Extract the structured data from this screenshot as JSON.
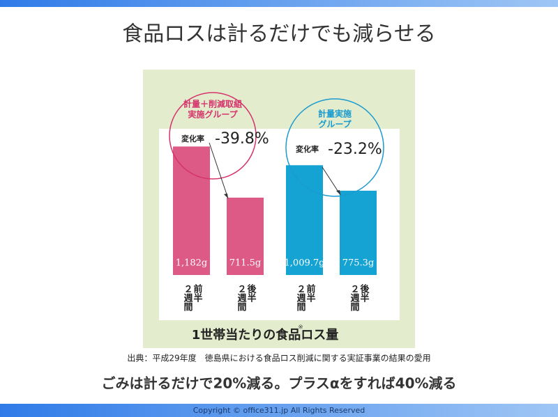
{
  "title": "食品ロスは計るだけでも減らせる",
  "chart_data": {
    "type": "bar",
    "categories": [
      "２週間前半",
      "２週間後半",
      "２週間前半",
      "２週間後半"
    ],
    "values": [
      1182,
      711.5,
      1009.7,
      775.3
    ],
    "value_labels": [
      "1,182g",
      "711.5g",
      "1,009.7g",
      "775.3g"
    ],
    "colors": [
      "#dc5a85",
      "#dc5a85",
      "#14a3d2",
      "#14a3d2"
    ],
    "ylim": [
      0,
      1300
    ],
    "caption": "1世帯当たりの食品ロス量",
    "caption_mark": "※",
    "annotations": [
      {
        "group": [
          "計量＋削減取組",
          "実施グループ"
        ],
        "change_label": "変化率",
        "change": "-39.8%",
        "color": "#d6336c"
      },
      {
        "group": [
          "計量実施",
          "グループ"
        ],
        "change_label": "変化率",
        "change": "-23.2%",
        "color": "#1a9bd0"
      }
    ]
  },
  "source": "出典：平成29年度　徳島県における食品ロス削減に関する実証事業の結果の愛用",
  "summary": "ごみは計るだけで20%減る。プラスαをすれば40%減る",
  "footer": "Copyright © office311.jp All Rights Reserved"
}
